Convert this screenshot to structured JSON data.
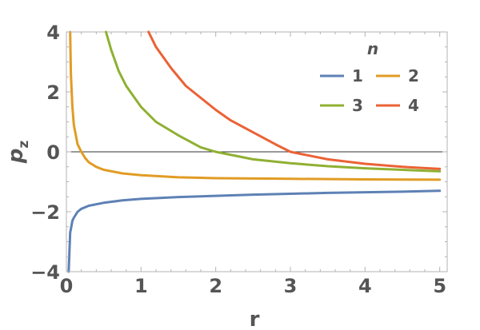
{
  "chart_data": {
    "type": "line",
    "xlabel": "r",
    "ylabel": "p",
    "ylabel_subscript": "z",
    "xlim": [
      0,
      5.1
    ],
    "ylim": [
      -4,
      4
    ],
    "xticks": [
      0,
      1,
      2,
      3,
      4,
      5
    ],
    "yticks": [
      -4,
      -2,
      0,
      2,
      4
    ],
    "ytick_labels": [
      "−4",
      "−2",
      "0",
      "2",
      "4"
    ],
    "zero_line": true,
    "grid": false,
    "legend": {
      "title": "n",
      "placement": "top-right"
    },
    "series": [
      {
        "name": "1",
        "color": "#5e81b5",
        "x": [
          0.03,
          0.05,
          0.08,
          0.1,
          0.15,
          0.2,
          0.3,
          0.5,
          0.75,
          1,
          1.5,
          2,
          2.5,
          3,
          3.5,
          4,
          4.5,
          5
        ],
        "y": [
          -4.0,
          -2.7,
          -2.3,
          -2.2,
          -2.0,
          -1.9,
          -1.8,
          -1.7,
          -1.62,
          -1.57,
          -1.51,
          -1.47,
          -1.43,
          -1.4,
          -1.37,
          -1.35,
          -1.33,
          -1.3
        ]
      },
      {
        "name": "2",
        "color": "#e19c24",
        "x": [
          0.05,
          0.06,
          0.08,
          0.1,
          0.15,
          0.2,
          0.25,
          0.3,
          0.4,
          0.5,
          0.75,
          1,
          1.5,
          2,
          3,
          4,
          5
        ],
        "y": [
          4.0,
          2.6,
          1.5,
          0.9,
          0.25,
          0.0,
          -0.2,
          -0.35,
          -0.5,
          -0.6,
          -0.72,
          -0.78,
          -0.85,
          -0.88,
          -0.9,
          -0.92,
          -0.93
        ]
      },
      {
        "name": "3",
        "color": "#8fb032",
        "x": [
          0.53,
          0.6,
          0.7,
          0.8,
          1,
          1.2,
          1.5,
          1.8,
          2,
          2.5,
          3,
          3.5,
          4,
          4.5,
          5
        ],
        "y": [
          4.0,
          3.4,
          2.7,
          2.2,
          1.5,
          1.0,
          0.55,
          0.15,
          0.0,
          -0.25,
          -0.38,
          -0.48,
          -0.55,
          -0.6,
          -0.65
        ]
      },
      {
        "name": "4",
        "color": "#eb6235",
        "x": [
          1.1,
          1.2,
          1.4,
          1.6,
          1.8,
          2,
          2.2,
          2.5,
          2.8,
          3,
          3.5,
          4,
          4.5,
          5
        ],
        "y": [
          4.0,
          3.5,
          2.8,
          2.2,
          1.8,
          1.4,
          1.05,
          0.65,
          0.25,
          0.0,
          -0.25,
          -0.4,
          -0.5,
          -0.57
        ]
      }
    ]
  }
}
